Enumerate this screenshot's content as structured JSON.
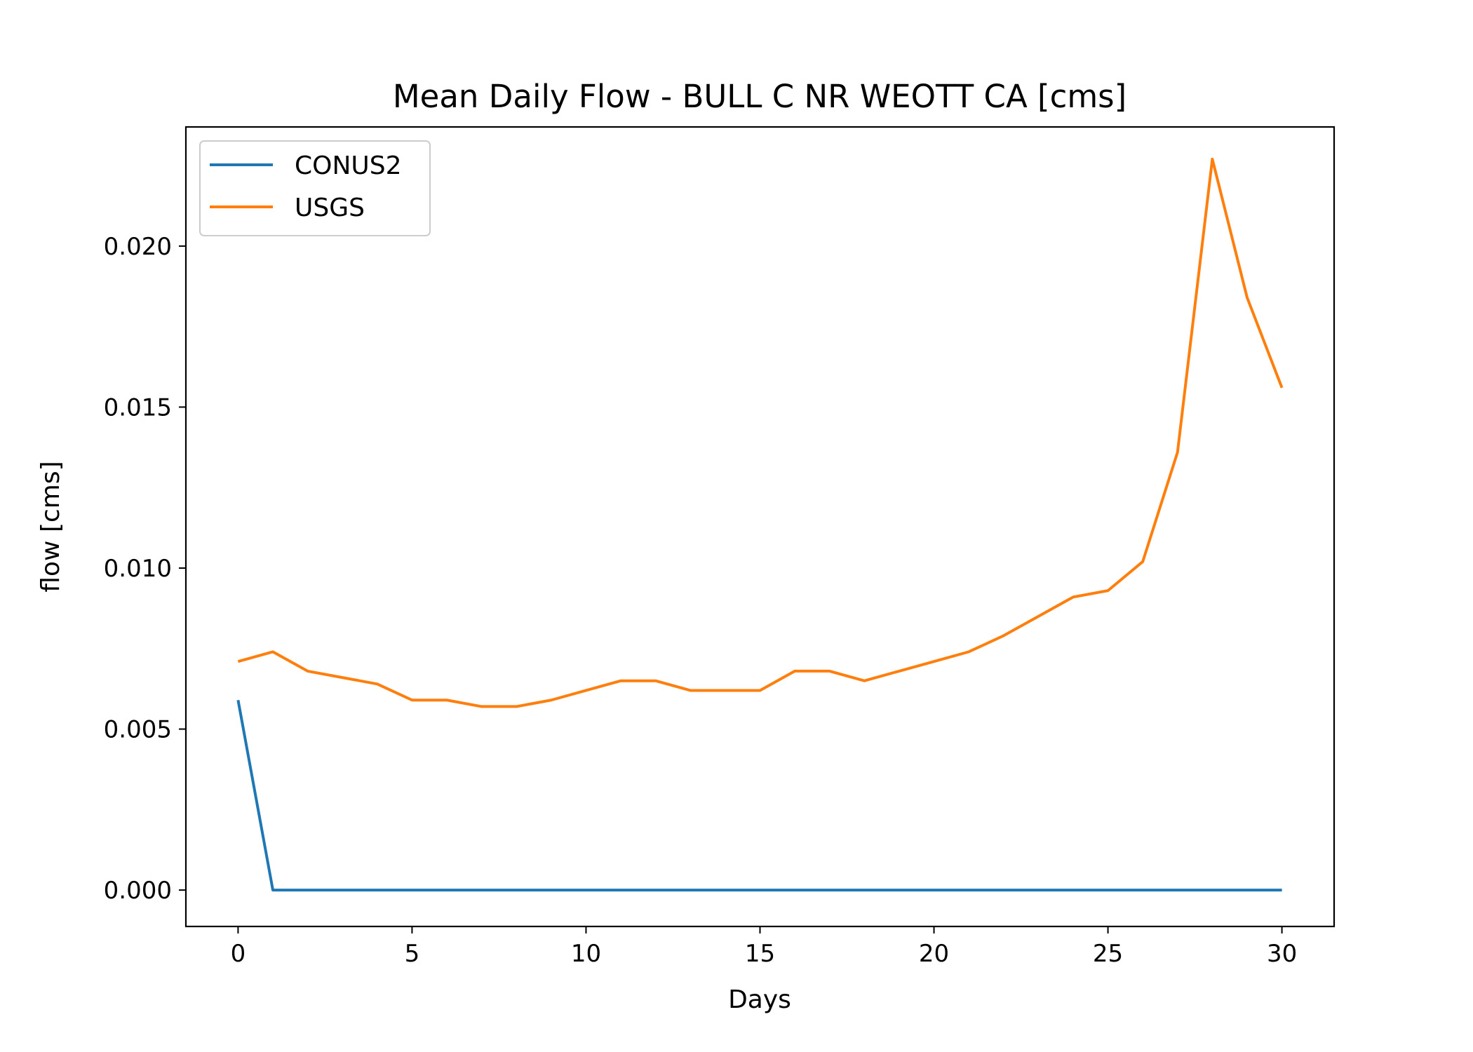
{
  "chart_data": {
    "type": "line",
    "title": "Mean Daily Flow - BULL C NR WEOTT CA [cms]",
    "xlabel": "Days",
    "ylabel": "flow [cms]",
    "xlim": [
      -1.5,
      31.5
    ],
    "ylim": [
      -0.00113,
      0.0237
    ],
    "xticks": [
      0,
      5,
      10,
      15,
      20,
      25,
      30
    ],
    "xtick_labels": [
      "0",
      "5",
      "10",
      "15",
      "20",
      "25",
      "30"
    ],
    "yticks": [
      0.0,
      0.005,
      0.01,
      0.015,
      0.02
    ],
    "ytick_labels": [
      "0.000",
      "0.005",
      "0.010",
      "0.015",
      "0.020"
    ],
    "grid": false,
    "legend_position": "top-left",
    "x": [
      0,
      1,
      2,
      3,
      4,
      5,
      6,
      7,
      8,
      9,
      10,
      11,
      12,
      13,
      14,
      15,
      16,
      17,
      18,
      19,
      20,
      21,
      22,
      23,
      24,
      25,
      26,
      27,
      28,
      29,
      30
    ],
    "series": [
      {
        "name": "CONUS2",
        "color": "#1f77b4",
        "values": [
          0.0059,
          0,
          0,
          0,
          0,
          0,
          0,
          0,
          0,
          0,
          0,
          0,
          0,
          0,
          0,
          0,
          0,
          0,
          0,
          0,
          0,
          0,
          0,
          0,
          0,
          0,
          0,
          0,
          0,
          0,
          0
        ]
      },
      {
        "name": "USGS",
        "color": "#ff7f0e",
        "values": [
          0.0071,
          0.0074,
          0.0068,
          0.0066,
          0.0064,
          0.0059,
          0.0059,
          0.0057,
          0.0057,
          0.0059,
          0.0062,
          0.0065,
          0.0065,
          0.0062,
          0.0062,
          0.0062,
          0.0068,
          0.0068,
          0.0065,
          0.0068,
          0.0071,
          0.0074,
          0.0079,
          0.0085,
          0.0091,
          0.0093,
          0.0102,
          0.0136,
          0.0227,
          0.0184,
          0.0156
        ]
      }
    ]
  }
}
